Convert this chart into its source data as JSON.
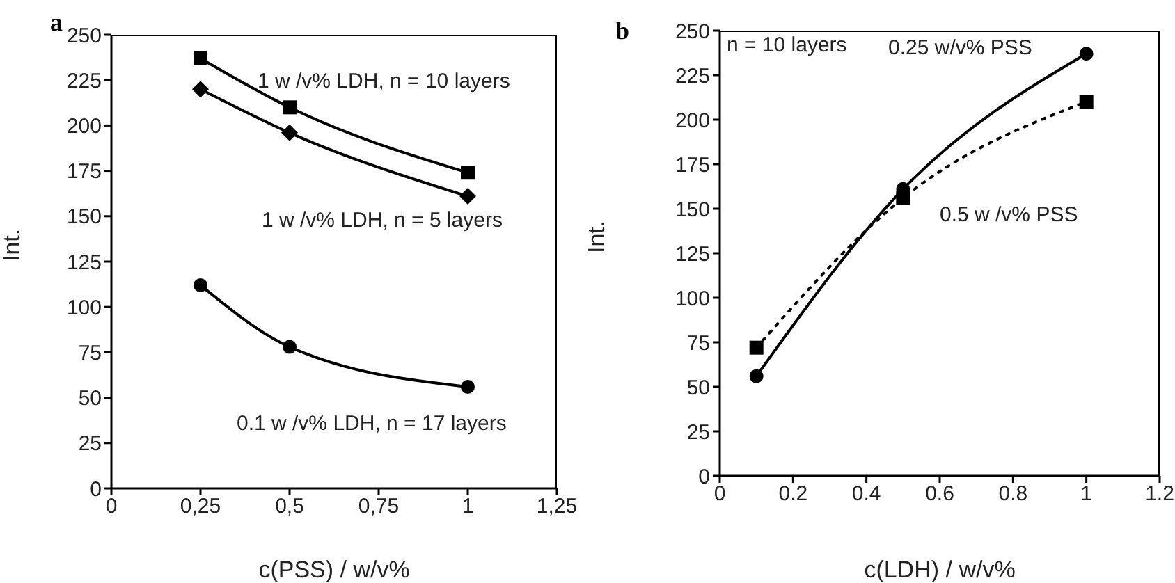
{
  "chart_data": [
    {
      "type": "line",
      "title": "a",
      "xlabel": "c(PSS) / w/v%",
      "ylabel": "Int.",
      "x": [
        0.25,
        0.5,
        1
      ],
      "series": [
        {
          "name": "1 w /v% LDH, n = 10 layers",
          "color": "#000000",
          "marker": "square",
          "line_style": "solid",
          "values": [
            237,
            210,
            174
          ]
        },
        {
          "name": "1 w /v% LDH, n = 5 layers",
          "color": "#000000",
          "marker": "diamond",
          "line_style": "solid",
          "values": [
            220,
            196,
            161
          ]
        },
        {
          "name": "0.1 w /v% LDH, n = 17 layers",
          "color": "#000000",
          "marker": "circle",
          "line_style": "solid",
          "values": [
            112,
            78,
            56
          ]
        }
      ],
      "xlim": [
        0,
        1.25
      ],
      "xticks": [
        0,
        {
          "value": 0.25,
          "label": "0,25"
        },
        {
          "value": 0.5,
          "label": "0,5"
        },
        {
          "value": 0.75,
          "label": "0,75"
        },
        1,
        {
          "value": 1.25,
          "label": "1,25"
        }
      ],
      "ylim": [
        0,
        250
      ],
      "yticks": [
        0,
        25,
        50,
        75,
        100,
        125,
        150,
        175,
        200,
        225,
        250
      ],
      "grid": false,
      "legend": false
    },
    {
      "type": "line",
      "title": "b",
      "xlabel": "c(LDH) / w/v%",
      "ylabel": "Int.",
      "annotations": [
        "n = 10 layers"
      ],
      "x": [
        0.1,
        0.5,
        1
      ],
      "series": [
        {
          "name": "0.25 w/v% PSS",
          "color": "#000000",
          "marker": "circle",
          "line_style": "solid",
          "values": [
            56,
            161,
            237
          ]
        },
        {
          "name": "0.5 w /v% PSS",
          "color": "#000000",
          "marker": "square",
          "line_style": "dotted",
          "values": [
            72,
            156,
            210
          ]
        }
      ],
      "xlim": [
        0,
        1.2
      ],
      "xticks": [
        0,
        0.2,
        0.4,
        0.6,
        0.8,
        1,
        1.2
      ],
      "ylim": [
        0,
        250
      ],
      "yticks": [
        0,
        25,
        50,
        75,
        100,
        125,
        150,
        175,
        200,
        225,
        250
      ],
      "grid": false,
      "legend": false
    }
  ]
}
